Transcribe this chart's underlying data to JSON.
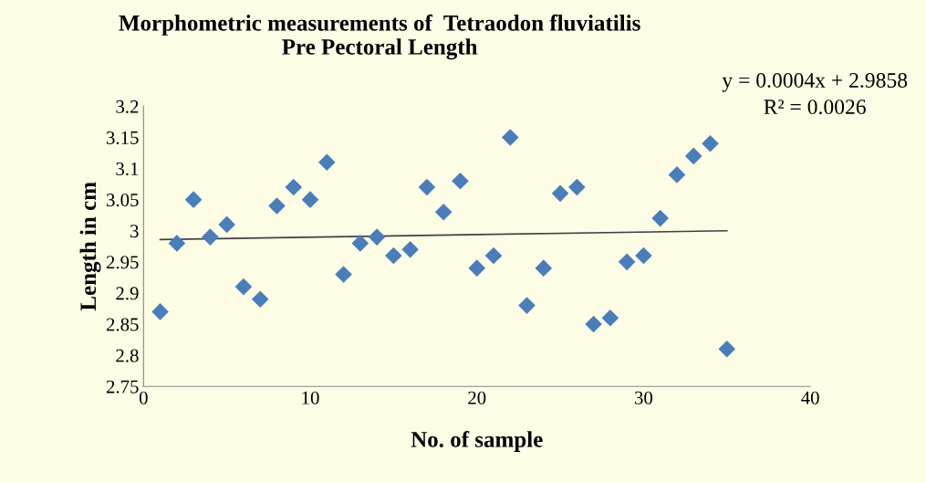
{
  "chart_data": {
    "type": "scatter",
    "title": "Morphometric measurements of  Tetraodon fluviatilis\nPre Pectoral Length",
    "xlabel": "No. of sample",
    "ylabel": "Length in cm",
    "series": [
      {
        "color": "#4a7ebb",
        "marker": "diamond",
        "x": [
          1,
          2,
          3,
          4,
          5,
          6,
          7,
          8,
          9,
          10,
          11,
          12,
          13,
          14,
          15,
          16,
          17,
          18,
          19,
          20,
          21,
          22,
          23,
          24,
          25,
          26,
          27,
          28,
          29,
          30,
          31,
          32,
          33,
          34,
          35
        ],
        "values": [
          2.87,
          2.98,
          3.05,
          2.99,
          3.01,
          2.91,
          2.89,
          3.04,
          3.07,
          3.05,
          3.11,
          2.93,
          2.98,
          2.99,
          2.96,
          2.97,
          3.07,
          3.03,
          3.08,
          2.94,
          2.96,
          3.15,
          2.88,
          2.94,
          3.06,
          3.07,
          2.85,
          2.86,
          2.95,
          2.96,
          3.02,
          3.09,
          3.12,
          3.14,
          2.81
        ]
      },
      {
        "type": "line",
        "marker": "none",
        "color": "#404040",
        "x": [
          1,
          35
        ],
        "values": [
          2.986,
          3.0
        ]
      }
    ],
    "grid": false,
    "legend": false,
    "xlim": [
      0,
      40
    ],
    "xticks": [
      0,
      10,
      20,
      30,
      40
    ],
    "ylim": [
      2.75,
      3.2
    ],
    "yticks": [
      2.75,
      2.8,
      2.85,
      2.9,
      2.95,
      3,
      3.05,
      3.1,
      3.15,
      3.2
    ],
    "annotations": [
      "y = 0.0004x + 2.9858",
      "R² = 0.0026"
    ]
  }
}
